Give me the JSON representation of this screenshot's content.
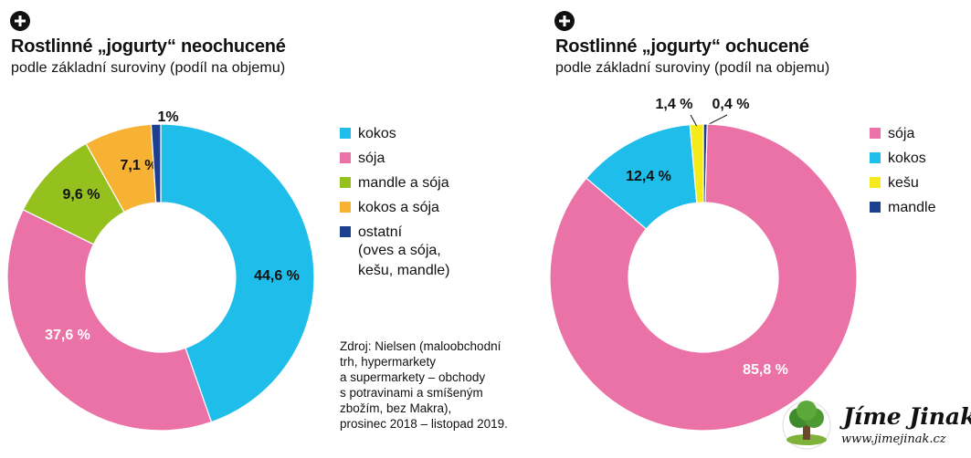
{
  "colors": {
    "kokos": "#1fbdea",
    "soja": "#ea72a6",
    "mandle_a_soja": "#95c11f",
    "kokos_a_soja": "#f7b233",
    "ostatni": "#1c3f8f",
    "kesu": "#f5eb1b",
    "mandle": "#1c3f8f"
  },
  "source": {
    "lines": [
      "Zdroj: Nielsen (maloobchodní",
      "trh, hypermarkety",
      "a supermarkety – obchody",
      "s potravinami a smíšeným",
      "zbožím, bez Makra),",
      "prosinec 2018 – listopad 2019."
    ]
  },
  "logo": {
    "text": "Jíme Jinak",
    "url": "www.jimejinak.cz",
    "icon": "tree-icon"
  },
  "chart_data": [
    {
      "type": "pie",
      "donut": true,
      "title": "Rostlinné „jogurty“ neochucené",
      "subtitle": "podle základní suroviny (podíl na objemu)",
      "categories": [
        "kokos",
        "sója",
        "mandle a sója",
        "kokos a sója",
        "ostatní"
      ],
      "values": [
        44.6,
        37.6,
        9.6,
        7.1,
        1.0
      ],
      "labels": [
        "44,6 %",
        "37,6 %",
        "9,6 %",
        "7,1 %",
        "1%"
      ],
      "colors": [
        "#1fbdea",
        "#ea72a6",
        "#95c11f",
        "#f7b233",
        "#1c3f8f"
      ],
      "legend": [
        {
          "label": "kokos",
          "color": "#1fbdea"
        },
        {
          "label": "sója",
          "color": "#ea72a6"
        },
        {
          "label": "mandle a sója",
          "color": "#95c11f"
        },
        {
          "label": "kokos a sója",
          "color": "#f7b233"
        },
        {
          "label": "ostatní",
          "note": [
            "(oves a sója,",
            "kešu, mandle)"
          ],
          "color": "#1c3f8f"
        }
      ],
      "legend_position": "right"
    },
    {
      "type": "pie",
      "donut": true,
      "title": "Rostlinné „jogurty“ ochucené",
      "subtitle": "podle základní suroviny (podíl na objemu)",
      "categories": [
        "mandle",
        "sója",
        "kokos",
        "kešu"
      ],
      "values": [
        0.4,
        85.8,
        12.4,
        1.4
      ],
      "labels": [
        "0,4 %",
        "85,8 %",
        "12,4 %",
        "1,4 %"
      ],
      "colors": [
        "#1c3f8f",
        "#ea72a6",
        "#1fbdea",
        "#f5eb1b"
      ],
      "legend": [
        {
          "label": "sója",
          "color": "#ea72a6"
        },
        {
          "label": "kokos",
          "color": "#1fbdea"
        },
        {
          "label": "kešu",
          "color": "#f5eb1b"
        },
        {
          "label": "mandle",
          "color": "#1c3f8f"
        }
      ],
      "legend_position": "right"
    }
  ]
}
